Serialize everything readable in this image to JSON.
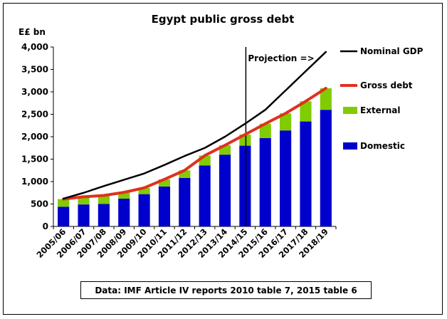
{
  "chart_data": {
    "type": "bar",
    "title": "Egypt public gross debt",
    "ylabel": "E£ bn",
    "ylim": [
      0,
      4000
    ],
    "yticks": [
      0,
      500,
      1000,
      1500,
      2000,
      2500,
      3000,
      3500,
      4000
    ],
    "ytick_labels": [
      "0",
      "500",
      "1,000",
      "1,500",
      "2,000",
      "2,500",
      "3,000",
      "3,500",
      "4,000"
    ],
    "categories": [
      "2005/06",
      "2006/07",
      "2007/08",
      "2008/09",
      "2009/10",
      "2010/11",
      "2011/12",
      "2012/13",
      "2013/14",
      "2014/15",
      "2015/16",
      "2016/17",
      "2017/18",
      "2018/19"
    ],
    "stacked": true,
    "series": [
      {
        "name": "Domestic",
        "kind": "bar",
        "color": "#0000cc",
        "values": [
          440,
          490,
          500,
          620,
          720,
          890,
          1080,
          1360,
          1600,
          1800,
          1970,
          2140,
          2340,
          2600
        ]
      },
      {
        "name": "External",
        "kind": "bar",
        "color": "#80cc00",
        "values": [
          170,
          170,
          190,
          140,
          140,
          160,
          170,
          220,
          210,
          250,
          320,
          380,
          450,
          480
        ]
      },
      {
        "name": "Gross debt",
        "kind": "line",
        "color": "#e03020",
        "values": [
          610,
          660,
          690,
          760,
          860,
          1050,
          1250,
          1580,
          1810,
          2050,
          2290,
          2520,
          2790,
          3080
        ]
      },
      {
        "name": "Nominal GDP",
        "kind": "line",
        "color": "#000000",
        "values": [
          620,
          750,
          900,
          1040,
          1180,
          1370,
          1570,
          1750,
          2000,
          2290,
          2600,
          3030,
          3460,
          3890
        ]
      }
    ],
    "projection": {
      "label": "Projection =>",
      "after_category": "2014/15"
    },
    "legend": "right",
    "grid": "none"
  },
  "source_note": "Data: IMF Article IV reports 2010 table 7, 2015 table 6"
}
